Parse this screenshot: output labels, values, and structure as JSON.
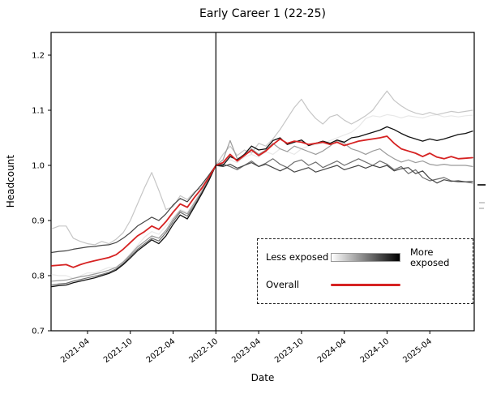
{
  "chart_data": {
    "type": "line",
    "title": "Early Career 1 (22-25)",
    "xlabel": "Date",
    "ylabel": "Headcount",
    "ylim": [
      0.7,
      1.241
    ],
    "grid": false,
    "normalization_vline_at": "2022-10",
    "yticks": [
      "0.7",
      "0.8",
      "0.9",
      "1.0",
      "1.1",
      "1.2"
    ],
    "xticks": [
      {
        "label": "2021-04",
        "index": 5
      },
      {
        "label": "2021-10",
        "index": 11
      },
      {
        "label": "2022-04",
        "index": 17
      },
      {
        "label": "2022-10",
        "index": 23
      },
      {
        "label": "2023-04",
        "index": 29
      },
      {
        "label": "2023-10",
        "index": 35
      },
      {
        "label": "2024-04",
        "index": 41
      },
      {
        "label": "2024-10",
        "index": 47
      },
      {
        "label": "2025-04",
        "index": 53
      }
    ],
    "x": [
      "2020-11",
      "2020-12",
      "2021-01",
      "2021-02",
      "2021-03",
      "2021-04",
      "2021-05",
      "2021-06",
      "2021-07",
      "2021-08",
      "2021-09",
      "2021-10",
      "2021-11",
      "2021-12",
      "2022-01",
      "2022-02",
      "2022-03",
      "2022-04",
      "2022-05",
      "2022-06",
      "2022-07",
      "2022-08",
      "2022-09",
      "2022-10",
      "2022-11",
      "2022-12",
      "2023-01",
      "2023-02",
      "2023-03",
      "2023-04",
      "2023-05",
      "2023-06",
      "2023-07",
      "2023-08",
      "2023-09",
      "2023-10",
      "2023-11",
      "2023-12",
      "2024-01",
      "2024-02",
      "2024-03",
      "2024-04",
      "2024-05",
      "2024-06",
      "2024-07",
      "2024-08",
      "2024-09",
      "2024-10",
      "2024-11",
      "2024-12",
      "2025-01",
      "2025-02",
      "2025-03",
      "2025-04",
      "2025-05",
      "2025-06",
      "2025-07",
      "2025-08",
      "2025-09",
      "2025-10"
    ],
    "vline_index": 23,
    "series": [
      {
        "name": "q1_least_exposed",
        "color": "#e8e8e8",
        "width": 1.2,
        "values": [
          0.802,
          0.8,
          0.8,
          0.795,
          0.8,
          0.805,
          0.805,
          0.81,
          0.815,
          0.815,
          0.825,
          0.84,
          0.855,
          0.87,
          0.88,
          0.875,
          0.89,
          0.905,
          0.92,
          0.915,
          0.935,
          0.955,
          0.975,
          1.0,
          1.005,
          1.01,
          1.005,
          1.015,
          1.02,
          1.015,
          1.025,
          1.02,
          1.03,
          1.025,
          1.02,
          1.03,
          1.035,
          1.038,
          1.04,
          1.045,
          1.05,
          1.055,
          1.06,
          1.07,
          1.085,
          1.09,
          1.088,
          1.092,
          1.09,
          1.086,
          1.09,
          1.088,
          1.086,
          1.09,
          1.092,
          1.088,
          1.09,
          1.088,
          1.09,
          1.091
        ]
      },
      {
        "name": "q2_exposed",
        "color": "#c6c6c6",
        "width": 1.2,
        "values": [
          0.885,
          0.89,
          0.89,
          0.868,
          0.862,
          0.858,
          0.856,
          0.862,
          0.858,
          0.866,
          0.878,
          0.9,
          0.93,
          0.96,
          0.987,
          0.955,
          0.92,
          0.925,
          0.945,
          0.938,
          0.952,
          0.96,
          0.98,
          1.0,
          1.02,
          1.035,
          1.018,
          1.028,
          1.022,
          1.04,
          1.035,
          1.048,
          1.065,
          1.085,
          1.105,
          1.12,
          1.1,
          1.085,
          1.075,
          1.088,
          1.092,
          1.082,
          1.075,
          1.082,
          1.09,
          1.1,
          1.118,
          1.135,
          1.118,
          1.108,
          1.1,
          1.095,
          1.092,
          1.096,
          1.092,
          1.095,
          1.098,
          1.096,
          1.098,
          1.1
        ]
      },
      {
        "name": "q3_exposed",
        "color": "#9b9b9b",
        "width": 1.2,
        "values": [
          0.79,
          0.791,
          0.792,
          0.795,
          0.798,
          0.8,
          0.803,
          0.806,
          0.81,
          0.815,
          0.825,
          0.838,
          0.852,
          0.862,
          0.872,
          0.868,
          0.882,
          0.902,
          0.918,
          0.912,
          0.932,
          0.952,
          0.975,
          1.0,
          1.01,
          1.045,
          1.012,
          1.018,
          1.03,
          1.02,
          1.028,
          1.04,
          1.03,
          1.025,
          1.035,
          1.03,
          1.025,
          1.02,
          1.026,
          1.035,
          1.045,
          1.04,
          1.03,
          1.026,
          1.02,
          1.026,
          1.03,
          1.02,
          1.012,
          1.006,
          1.01,
          1.005,
          1.008,
          1.002,
          1.0,
          1.002,
          1.0,
          1.0,
          1.0,
          0.998
        ]
      },
      {
        "name": "q4_exposed",
        "color": "#6e6e6e",
        "width": 1.2,
        "values": [
          0.783,
          0.785,
          0.786,
          0.79,
          0.793,
          0.796,
          0.799,
          0.802,
          0.806,
          0.812,
          0.822,
          0.835,
          0.848,
          0.858,
          0.868,
          0.863,
          0.878,
          0.898,
          0.915,
          0.908,
          0.928,
          0.95,
          0.974,
          1.0,
          1.002,
          0.998,
          0.992,
          1.0,
          1.008,
          0.998,
          1.004,
          1.012,
          1.002,
          0.996,
          1.006,
          1.01,
          1.0,
          1.006,
          0.996,
          1.002,
          1.008,
          1.0,
          1.006,
          1.012,
          1.006,
          1.0,
          1.008,
          1.002,
          0.992,
          0.998,
          0.985,
          0.992,
          0.978,
          0.972,
          0.975,
          0.978,
          0.972,
          0.97,
          0.97,
          0.968
        ]
      },
      {
        "name": "q5_exposed",
        "color": "#454545",
        "width": 1.2,
        "values": [
          0.842,
          0.844,
          0.845,
          0.848,
          0.85,
          0.852,
          0.853,
          0.855,
          0.856,
          0.86,
          0.868,
          0.878,
          0.89,
          0.898,
          0.906,
          0.9,
          0.912,
          0.928,
          0.94,
          0.934,
          0.95,
          0.965,
          0.982,
          1.0,
          0.998,
          1.002,
          0.995,
          1.0,
          1.005,
          0.998,
          1.002,
          0.996,
          0.99,
          0.996,
          0.988,
          0.992,
          0.996,
          0.988,
          0.992,
          0.996,
          1.0,
          0.992,
          0.996,
          1.0,
          0.995,
          1.0,
          0.996,
          1.0,
          0.99,
          0.994,
          0.996,
          0.985,
          0.99,
          0.976,
          0.968,
          0.974,
          0.971,
          0.972,
          0.97,
          0.971
        ]
      },
      {
        "name": "q6_most_exposed",
        "color": "#111111",
        "width": 1.3,
        "values": [
          0.78,
          0.782,
          0.783,
          0.787,
          0.79,
          0.793,
          0.796,
          0.8,
          0.804,
          0.81,
          0.82,
          0.832,
          0.845,
          0.855,
          0.865,
          0.858,
          0.872,
          0.893,
          0.91,
          0.903,
          0.925,
          0.948,
          0.972,
          1.0,
          1.0,
          1.016,
          1.01,
          1.02,
          1.035,
          1.028,
          1.03,
          1.045,
          1.05,
          1.038,
          1.042,
          1.046,
          1.036,
          1.04,
          1.044,
          1.04,
          1.046,
          1.042,
          1.05,
          1.052,
          1.056,
          1.06,
          1.064,
          1.07,
          1.065,
          1.058,
          1.052,
          1.048,
          1.044,
          1.048,
          1.045,
          1.048,
          1.052,
          1.056,
          1.058,
          1.062
        ]
      },
      {
        "name": "overall",
        "color": "#d62222",
        "width": 1.8,
        "values": [
          0.818,
          0.819,
          0.82,
          0.815,
          0.82,
          0.824,
          0.827,
          0.83,
          0.833,
          0.838,
          0.848,
          0.86,
          0.872,
          0.88,
          0.89,
          0.884,
          0.898,
          0.915,
          0.93,
          0.924,
          0.942,
          0.958,
          0.978,
          1.0,
          1.005,
          1.02,
          1.008,
          1.018,
          1.028,
          1.018,
          1.026,
          1.038,
          1.048,
          1.04,
          1.044,
          1.042,
          1.038,
          1.04,
          1.042,
          1.038,
          1.042,
          1.036,
          1.04,
          1.044,
          1.046,
          1.048,
          1.05,
          1.053,
          1.04,
          1.03,
          1.026,
          1.022,
          1.016,
          1.022,
          1.015,
          1.012,
          1.016,
          1.012,
          1.013,
          1.014
        ]
      }
    ],
    "legend": {
      "less_label": "Less exposed",
      "more_label": "More exposed",
      "overall_label": "Overall",
      "gradient": [
        "#ffffff",
        "#000000"
      ],
      "overall_color": "#d62222",
      "position": "lower right"
    }
  }
}
